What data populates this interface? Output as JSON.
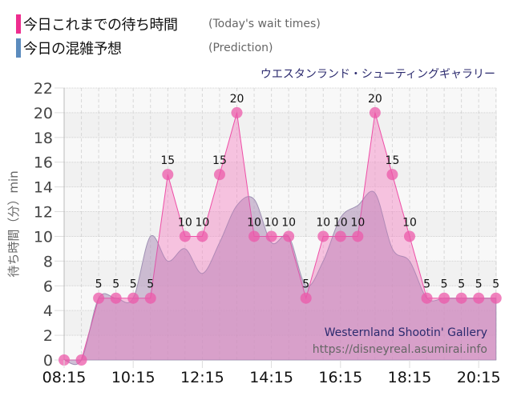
{
  "legend": {
    "today": {
      "label_jp": "今日これまでの待ち時間",
      "label_en": "(Today's wait times)",
      "color": "#ee2d8f"
    },
    "prediction": {
      "label_jp": "今日の混雑予想",
      "label_en": "(Prediction)",
      "color": "#5b8bbd"
    }
  },
  "chart_title": "ウエスタンランド・シューティングギャラリー",
  "watermark": {
    "name": "Westernland Shootin' Gallery",
    "url": "https://disneyreal.asumirai.info"
  },
  "colors": {
    "actual_fill": "#f48cc6",
    "actual_line": "#ee4ea6",
    "actual_marker": "#ec5aaa",
    "prediction_fill": "#a89bb0",
    "overlap_fill": "#d9b4d9",
    "title": "#2b2a6e"
  },
  "chart_data": {
    "type": "area",
    "title": "ウエスタンランド・シューティングギャラリー",
    "xlabel": "",
    "ylabel": "待ち時間（分）min",
    "ylim": [
      0,
      22
    ],
    "yticks": [
      0,
      2,
      4,
      6,
      8,
      10,
      12,
      14,
      16,
      18,
      20,
      22
    ],
    "xtick_labels": [
      "08:15",
      "10:15",
      "12:15",
      "14:15",
      "16:15",
      "18:15",
      "20:15"
    ],
    "grid": true,
    "legend_position": "top-left",
    "x": [
      "08:15",
      "08:45",
      "09:15",
      "09:45",
      "10:15",
      "10:45",
      "11:15",
      "11:45",
      "12:15",
      "12:45",
      "13:15",
      "13:45",
      "14:15",
      "14:45",
      "15:15",
      "15:45",
      "16:15",
      "16:45",
      "17:15",
      "17:45",
      "18:15",
      "18:45",
      "19:15",
      "19:45",
      "20:15",
      "20:45"
    ],
    "series": [
      {
        "name": "今日これまでの待ち時間 (Today's wait times)",
        "values": [
          0,
          0,
          5,
          5,
          5,
          5,
          15,
          10,
          10,
          15,
          20,
          10,
          10,
          10,
          5,
          10,
          10,
          10,
          20,
          15,
          10,
          5,
          5,
          5,
          5,
          5
        ],
        "data_labels": true
      },
      {
        "name": "今日の混雑予想 (Prediction)",
        "values": [
          0,
          0,
          5,
          5,
          5,
          10,
          8,
          9,
          7,
          9.5,
          12.5,
          13,
          9.5,
          10,
          6,
          8,
          11.5,
          12.5,
          13.5,
          9,
          8,
          5,
          5,
          5,
          5,
          5
        ]
      }
    ]
  }
}
